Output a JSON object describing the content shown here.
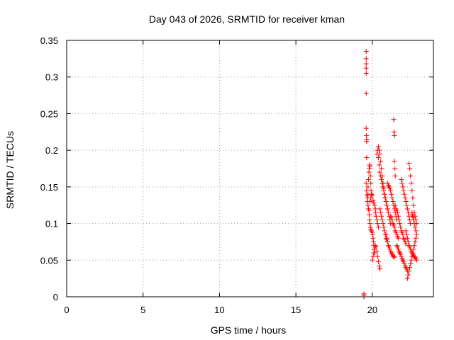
{
  "chart_data": {
    "type": "scatter",
    "title": "Day 043 of 2026, SRMTID for receiver kman",
    "xlabel": "GPS time / hours",
    "ylabel": "SRMTID / TECUs",
    "xlim": [
      0,
      24
    ],
    "ylim": [
      0,
      0.35
    ],
    "xticks": [
      0,
      5,
      10,
      15,
      20
    ],
    "xtick_labels": [
      "0",
      "5",
      "10",
      "15",
      "20"
    ],
    "yticks": [
      0,
      0.05,
      0.1,
      0.15,
      0.2,
      0.25,
      0.3,
      0.35
    ],
    "ytick_labels": [
      "0",
      "0.05",
      "0.1",
      "0.15",
      "0.2",
      "0.25",
      "0.3",
      "0.35"
    ],
    "grid": true,
    "marker": "+",
    "color": "#ff0000",
    "series": [
      {
        "name": "SRMTID",
        "x": [
          19.45,
          19.45,
          19.45,
          19.6,
          19.6,
          19.6,
          19.6,
          19.6,
          19.6,
          19.6,
          19.62,
          19.63,
          19.63,
          19.63,
          19.6,
          19.62,
          19.65,
          19.68,
          19.7,
          19.72,
          19.72,
          19.75,
          19.78,
          19.8,
          19.82,
          19.85,
          19.88,
          19.9,
          19.92,
          19.95,
          19.7,
          19.72,
          19.75,
          19.78,
          19.8,
          19.82,
          19.85,
          19.88,
          19.9,
          19.95,
          20.0,
          20.02,
          20.05,
          20.08,
          20.1,
          20.12,
          20.15,
          19.85,
          19.9,
          19.95,
          20.0,
          20.05,
          20.1,
          20.15,
          20.2,
          20.22,
          20.25,
          20.3,
          20.35,
          20.4,
          20.0,
          20.05,
          20.1,
          20.15,
          20.2,
          20.25,
          20.3,
          20.35,
          20.4,
          20.45,
          20.5,
          20.3,
          20.35,
          20.4,
          20.45,
          20.5,
          20.55,
          20.6,
          20.65,
          20.7,
          20.75,
          20.4,
          20.45,
          20.5,
          20.55,
          20.6,
          20.65,
          20.7,
          20.75,
          20.8,
          20.85,
          20.9,
          20.95,
          21.0,
          20.5,
          20.55,
          20.6,
          20.65,
          20.7,
          20.75,
          20.8,
          20.85,
          20.9,
          20.95,
          21.0,
          20.6,
          20.65,
          20.7,
          20.75,
          20.8,
          20.85,
          20.9,
          20.95,
          21.0,
          21.05,
          21.1,
          21.15,
          21.2,
          20.9,
          20.95,
          21.0,
          21.05,
          21.1,
          21.15,
          21.2,
          21.25,
          21.3,
          21.35,
          21.4,
          21.45,
          21.0,
          21.05,
          21.1,
          21.15,
          21.2,
          21.25,
          21.3,
          21.35,
          21.4,
          21.45,
          21.5,
          21.55,
          21.6,
          21.2,
          21.25,
          21.3,
          21.35,
          21.4,
          21.45,
          21.5,
          21.55,
          21.6,
          21.65,
          21.7,
          21.4,
          21.42,
          21.45,
          21.45,
          21.48,
          21.5,
          21.5,
          21.55,
          21.6,
          21.65,
          21.7,
          21.75,
          21.8,
          21.85,
          21.9,
          21.95,
          22.0,
          22.05,
          22.1,
          22.15,
          22.2,
          21.6,
          21.65,
          21.7,
          21.75,
          21.8,
          21.85,
          21.9,
          21.95,
          22.0,
          22.05,
          22.1,
          22.15,
          22.2,
          22.25,
          22.3,
          21.9,
          21.95,
          22.0,
          22.05,
          22.1,
          22.15,
          22.2,
          22.25,
          22.3,
          22.35,
          22.4,
          22.45,
          22.5,
          22.2,
          22.25,
          22.3,
          22.35,
          22.4,
          22.45,
          22.5,
          22.55,
          22.6,
          22.65,
          22.7,
          22.75,
          22.8,
          22.85,
          22.9,
          22.4,
          22.45,
          22.5,
          22.55,
          22.6,
          22.65,
          22.7,
          22.75,
          22.8,
          22.85,
          22.9,
          22.6,
          22.62,
          22.65,
          22.68,
          22.7,
          22.75,
          22.8,
          22.85,
          22.9,
          22.3,
          22.35,
          22.4,
          22.45,
          22.5,
          22.55,
          22.6,
          22.65,
          22.7,
          22.75,
          22.8,
          22.85
        ],
        "y": [
          0.0,
          0.002,
          0.004,
          0.335,
          0.325,
          0.318,
          0.312,
          0.305,
          0.278,
          0.23,
          0.22,
          0.215,
          0.212,
          0.19,
          0.155,
          0.145,
          0.138,
          0.135,
          0.13,
          0.14,
          0.15,
          0.16,
          0.17,
          0.175,
          0.18,
          0.178,
          0.165,
          0.155,
          0.145,
          0.14,
          0.13,
          0.125,
          0.12,
          0.118,
          0.112,
          0.105,
          0.1,
          0.095,
          0.092,
          0.09,
          0.088,
          0.085,
          0.08,
          0.075,
          0.07,
          0.065,
          0.06,
          0.13,
          0.135,
          0.14,
          0.138,
          0.132,
          0.128,
          0.125,
          0.12,
          0.115,
          0.11,
          0.105,
          0.1,
          0.095,
          0.05,
          0.055,
          0.06,
          0.065,
          0.07,
          0.068,
          0.062,
          0.055,
          0.048,
          0.042,
          0.038,
          0.195,
          0.2,
          0.19,
          0.18,
          0.17,
          0.165,
          0.16,
          0.155,
          0.15,
          0.145,
          0.205,
          0.2,
          0.195,
          0.185,
          0.175,
          0.165,
          0.155,
          0.148,
          0.14,
          0.135,
          0.13,
          0.125,
          0.12,
          0.12,
          0.115,
          0.11,
          0.105,
          0.1,
          0.095,
          0.09,
          0.085,
          0.08,
          0.078,
          0.075,
          0.16,
          0.155,
          0.15,
          0.145,
          0.14,
          0.135,
          0.13,
          0.125,
          0.12,
          0.115,
          0.11,
          0.105,
          0.1,
          0.085,
          0.08,
          0.075,
          0.07,
          0.068,
          0.065,
          0.062,
          0.06,
          0.058,
          0.056,
          0.055,
          0.054,
          0.155,
          0.152,
          0.15,
          0.148,
          0.145,
          0.14,
          0.135,
          0.13,
          0.125,
          0.12,
          0.115,
          0.11,
          0.105,
          0.11,
          0.108,
          0.105,
          0.1,
          0.098,
          0.095,
          0.09,
          0.088,
          0.085,
          0.082,
          0.08,
          0.242,
          0.225,
          0.22,
          0.185,
          0.175,
          0.165,
          0.125,
          0.12,
          0.118,
          0.115,
          0.11,
          0.105,
          0.1,
          0.095,
          0.09,
          0.088,
          0.085,
          0.08,
          0.078,
          0.075,
          0.072,
          0.07,
          0.068,
          0.065,
          0.062,
          0.06,
          0.058,
          0.055,
          0.052,
          0.05,
          0.048,
          0.045,
          0.042,
          0.04,
          0.038,
          0.035,
          0.16,
          0.155,
          0.15,
          0.145,
          0.14,
          0.135,
          0.13,
          0.125,
          0.12,
          0.115,
          0.11,
          0.105,
          0.1,
          0.09,
          0.085,
          0.08,
          0.075,
          0.07,
          0.068,
          0.065,
          0.062,
          0.06,
          0.058,
          0.056,
          0.055,
          0.054,
          0.052,
          0.05,
          0.182,
          0.175,
          0.165,
          0.155,
          0.145,
          0.135,
          0.125,
          0.115,
          0.11,
          0.105,
          0.1,
          0.115,
          0.112,
          0.11,
          0.108,
          0.105,
          0.1,
          0.095,
          0.09,
          0.085,
          0.025,
          0.03,
          0.035,
          0.04,
          0.045,
          0.05,
          0.055,
          0.06,
          0.065,
          0.07,
          0.075,
          0.08
        ]
      }
    ]
  }
}
